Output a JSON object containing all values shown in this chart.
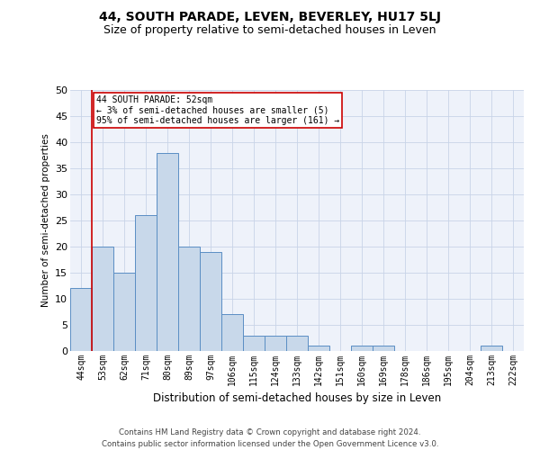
{
  "title": "44, SOUTH PARADE, LEVEN, BEVERLEY, HU17 5LJ",
  "subtitle": "Size of property relative to semi-detached houses in Leven",
  "xlabel": "Distribution of semi-detached houses by size in Leven",
  "ylabel": "Number of semi-detached properties",
  "categories": [
    "44sqm",
    "53sqm",
    "62sqm",
    "71sqm",
    "80sqm",
    "89sqm",
    "97sqm",
    "106sqm",
    "115sqm",
    "124sqm",
    "133sqm",
    "142sqm",
    "151sqm",
    "160sqm",
    "169sqm",
    "178sqm",
    "186sqm",
    "195sqm",
    "204sqm",
    "213sqm",
    "222sqm"
  ],
  "values": [
    12,
    20,
    15,
    26,
    38,
    20,
    19,
    7,
    3,
    3,
    3,
    1,
    0,
    1,
    1,
    0,
    0,
    0,
    0,
    1,
    0
  ],
  "bar_color": "#c8d8ea",
  "bar_edge_color": "#5b8ec4",
  "highlight_label": "44 SOUTH PARADE: 52sqm",
  "highlight_smaller": "← 3% of semi-detached houses are smaller (5)",
  "highlight_larger": "95% of semi-detached houses are larger (161) →",
  "vline_color": "#cc0000",
  "box_edge_color": "#cc0000",
  "ylim": [
    0,
    50
  ],
  "yticks": [
    0,
    5,
    10,
    15,
    20,
    25,
    30,
    35,
    40,
    45,
    50
  ],
  "grid_color": "#c8d4e8",
  "footer1": "Contains HM Land Registry data © Crown copyright and database right 2024.",
  "footer2": "Contains public sector information licensed under the Open Government Licence v3.0.",
  "bg_color": "#eef2fa",
  "title_fontsize": 10,
  "subtitle_fontsize": 9
}
